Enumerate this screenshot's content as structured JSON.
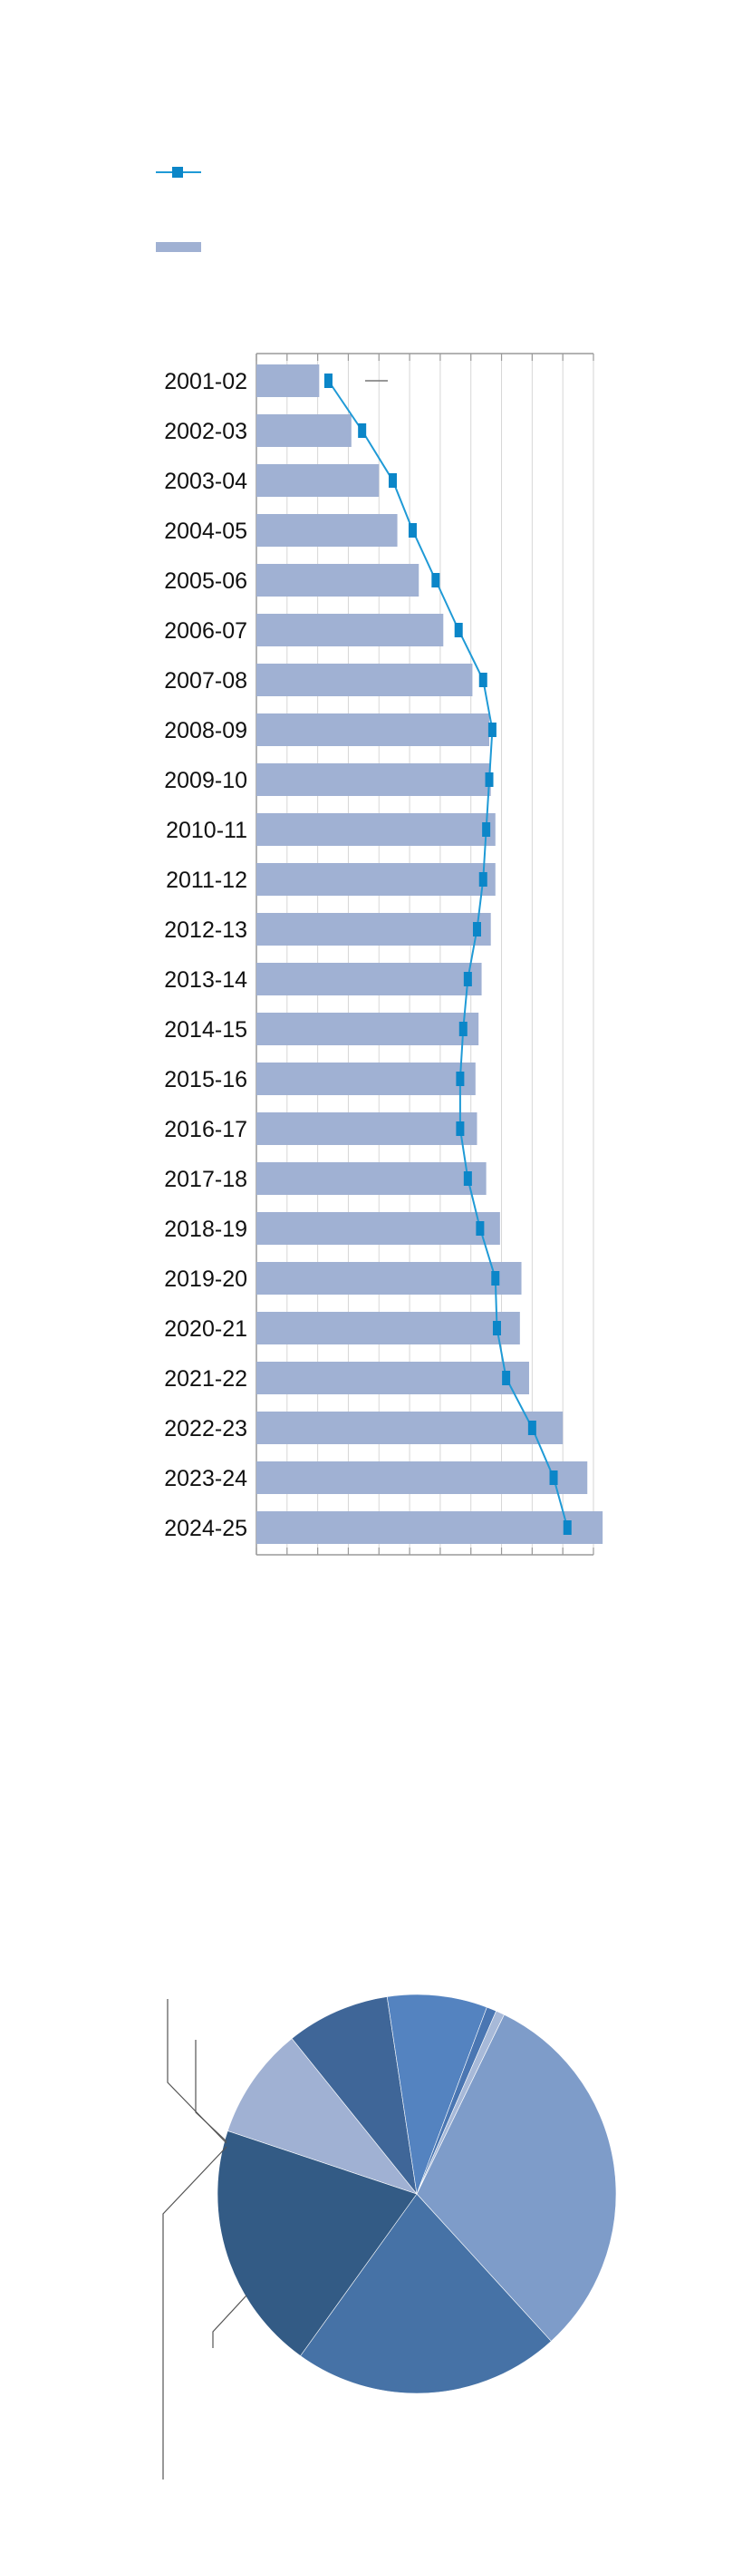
{
  "colors": {
    "bar": "#a0b1d3",
    "line": "#1f9ad6",
    "marker": "#0b86c8",
    "grid": "#d6d6d6",
    "axis": "#9a9a9a",
    "leader": "#555555"
  },
  "legend": {
    "entries": [
      {
        "kind": "line-marker",
        "label": ""
      },
      {
        "kind": "bar",
        "label": ""
      }
    ]
  },
  "chart_data": [
    {
      "type": "bar",
      "orientation": "horizontal",
      "categories": [
        "2001-02",
        "2002-03",
        "2003-04",
        "2004-05",
        "2005-06",
        "2006-07",
        "2007-08",
        "2008-09",
        "2009-10",
        "2010-11",
        "2011-12",
        "2012-13",
        "2013-14",
        "2014-15",
        "2015-16",
        "2016-17",
        "2017-18",
        "2018-19",
        "2019-20",
        "2020-21",
        "2021-22",
        "2022-23",
        "2023-24",
        "2024-25"
      ],
      "xlim": [
        0,
        110
      ],
      "grid": true,
      "series": [
        {
          "kind": "bar",
          "values": [
            20.5,
            31,
            40,
            46,
            53,
            61,
            70.5,
            76,
            76.5,
            78,
            78,
            76.5,
            73.5,
            72.5,
            71.5,
            72,
            75,
            79.5,
            86.5,
            86,
            89,
            100,
            108,
            113
          ]
        },
        {
          "kind": "line",
          "values": [
            23.5,
            34.5,
            44.5,
            51,
            58.5,
            66,
            74,
            77,
            76,
            75,
            74,
            72,
            69,
            67.5,
            66.5,
            66.5,
            69,
            73,
            78,
            78.5,
            81.5,
            90,
            97,
            101.5
          ]
        }
      ]
    },
    {
      "type": "pie",
      "values": [
        31,
        21.7,
        20.2,
        9.1,
        8.4,
        8.1,
        0.8,
        0.7
      ],
      "colors": [
        "#7e9cc9",
        "#4672a6",
        "#335b85",
        "#a0b1d3",
        "#3f6698",
        "#5483c0",
        "#4a76b2",
        "#a7b9d8"
      ]
    }
  ]
}
